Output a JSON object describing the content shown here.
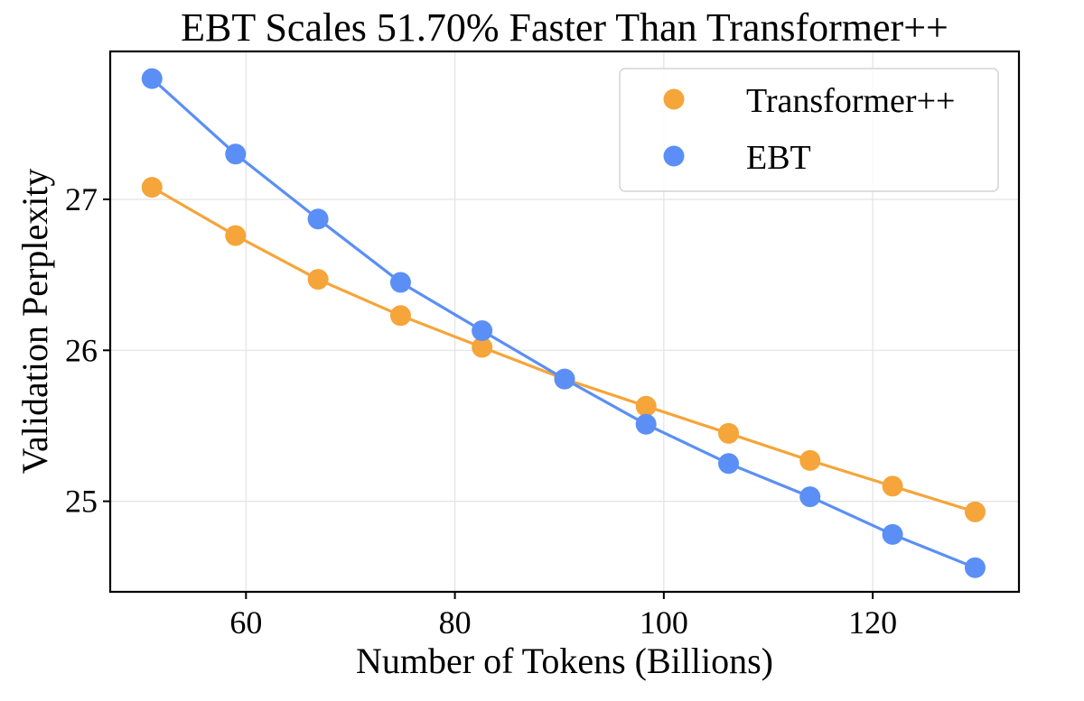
{
  "chart_data": {
    "type": "line",
    "title": "EBT Scales 51.70% Faster Than Transformer++",
    "xlabel": "Number of Tokens (Billions)",
    "ylabel": "Validation Perplexity",
    "xlim": [
      47,
      134
    ],
    "ylim": [
      24.4,
      27.98
    ],
    "xticks": [
      60,
      80,
      100,
      120
    ],
    "yticks": [
      25,
      26,
      27
    ],
    "grid": true,
    "legend_position": "top-right",
    "x": [
      51,
      59,
      66.9,
      74.8,
      82.6,
      90.5,
      98.3,
      106.2,
      114,
      121.9,
      129.8
    ],
    "series": [
      {
        "name": "Transformer++",
        "color": "#F5A53A",
        "values": [
          27.08,
          26.76,
          26.47,
          26.23,
          26.02,
          25.81,
          25.63,
          25.45,
          25.27,
          25.1,
          24.93
        ]
      },
      {
        "name": "EBT",
        "color": "#5B8FF5",
        "values": [
          27.8,
          27.3,
          26.87,
          26.45,
          26.13,
          25.81,
          25.51,
          25.25,
          25.03,
          24.78,
          24.56
        ]
      }
    ]
  }
}
